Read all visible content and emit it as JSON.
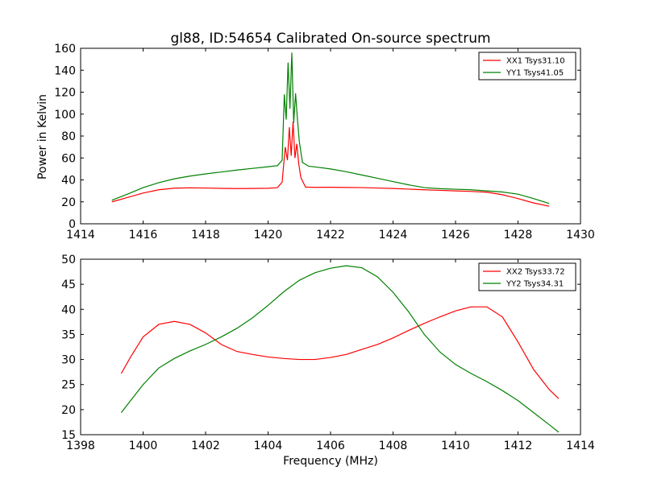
{
  "chart_data": [
    {
      "type": "line",
      "title": "gl88, ID:54654 Calibrated On-source spectrum",
      "xlabel": "",
      "ylabel": "Power in Kelvin",
      "xlim": [
        1414,
        1430
      ],
      "ylim": [
        0,
        160
      ],
      "xticks": [
        "1414",
        "1416",
        "1418",
        "1420",
        "1422",
        "1424",
        "1426",
        "1428",
        "1430"
      ],
      "yticks": [
        "0",
        "20",
        "40",
        "60",
        "80",
        "100",
        "120",
        "140",
        "160"
      ],
      "legend_position": "top-right",
      "series": [
        {
          "name": "XX1 Tsys31.10",
          "color": "#ff0000",
          "x": [
            1415.0,
            1415.5,
            1416.0,
            1416.5,
            1417.0,
            1417.5,
            1418.0,
            1418.5,
            1419.0,
            1419.5,
            1420.0,
            1420.3,
            1420.45,
            1420.55,
            1420.62,
            1420.68,
            1420.74,
            1420.8,
            1420.86,
            1420.92,
            1420.98,
            1421.05,
            1421.2,
            1421.5,
            1422.0,
            1422.5,
            1423.0,
            1423.5,
            1424.0,
            1424.5,
            1425.0,
            1425.5,
            1426.0,
            1426.5,
            1427.0,
            1427.5,
            1428.0,
            1428.5,
            1429.0
          ],
          "y": [
            20,
            24,
            28,
            31,
            32.5,
            32.8,
            32.6,
            32.3,
            32.1,
            32.2,
            32.4,
            33,
            38,
            70,
            58,
            88,
            62,
            93,
            60,
            73,
            55,
            42,
            33.5,
            33.2,
            33.3,
            33.1,
            33,
            32.6,
            32.2,
            31.6,
            31,
            30.5,
            30,
            29.5,
            28.8,
            26.5,
            23,
            19,
            16
          ]
        },
        {
          "name": "YY1 Tsys41.05",
          "color": "#008000",
          "x": [
            1415.0,
            1415.5,
            1416.0,
            1416.5,
            1417.0,
            1417.5,
            1418.0,
            1418.5,
            1419.0,
            1419.5,
            1420.0,
            1420.3,
            1420.45,
            1420.52,
            1420.58,
            1420.64,
            1420.7,
            1420.76,
            1420.82,
            1420.88,
            1420.94,
            1421.0,
            1421.1,
            1421.3,
            1421.6,
            1422.0,
            1422.5,
            1423.0,
            1423.5,
            1424.0,
            1424.5,
            1425.0,
            1425.5,
            1426.0,
            1426.5,
            1427.0,
            1427.5,
            1428.0,
            1428.5,
            1429.0
          ],
          "y": [
            21.5,
            27,
            33,
            37.5,
            41,
            43.5,
            45.5,
            47.2,
            49,
            50.5,
            52,
            53,
            58,
            118,
            95,
            147,
            105,
            156,
            92,
            119,
            95,
            75,
            56,
            52.5,
            51.5,
            50,
            47.5,
            44.5,
            41.5,
            38.5,
            35.5,
            33,
            32,
            31.5,
            31,
            30,
            29,
            27,
            23,
            18.5
          ]
        }
      ]
    },
    {
      "type": "line",
      "title": "",
      "xlabel": "Frequency (MHz)",
      "ylabel": "",
      "xlim": [
        1398,
        1414
      ],
      "ylim": [
        15,
        50
      ],
      "xticks": [
        "1398",
        "1400",
        "1402",
        "1404",
        "1406",
        "1408",
        "1410",
        "1412",
        "1414"
      ],
      "yticks": [
        "15",
        "20",
        "25",
        "30",
        "35",
        "40",
        "45",
        "50"
      ],
      "legend_position": "top-right",
      "series": [
        {
          "name": "XX2 Tsys33.72",
          "color": "#ff0000",
          "x": [
            1399.3,
            1399.6,
            1400.0,
            1400.5,
            1401.0,
            1401.5,
            1402.0,
            1402.5,
            1403.0,
            1403.5,
            1404.0,
            1404.5,
            1405.0,
            1405.5,
            1406.0,
            1406.5,
            1407.0,
            1407.5,
            1408.0,
            1408.5,
            1409.0,
            1409.5,
            1410.0,
            1410.5,
            1411.0,
            1411.5,
            1412.0,
            1412.5,
            1413.0,
            1413.3
          ],
          "y": [
            27.2,
            30.5,
            34.5,
            37,
            37.6,
            37,
            35.3,
            33,
            31.6,
            31,
            30.5,
            30.2,
            30,
            30,
            30.4,
            31,
            32,
            33,
            34.3,
            35.8,
            37.2,
            38.5,
            39.7,
            40.5,
            40.5,
            38.5,
            33.5,
            28,
            24,
            22.2
          ]
        },
        {
          "name": "YY2 Tsys34.31",
          "color": "#008000",
          "x": [
            1399.3,
            1399.6,
            1400.0,
            1400.5,
            1401.0,
            1401.5,
            1402.0,
            1402.5,
            1403.0,
            1403.5,
            1404.0,
            1404.5,
            1405.0,
            1405.5,
            1406.0,
            1406.5,
            1407.0,
            1407.5,
            1408.0,
            1408.5,
            1409.0,
            1409.5,
            1410.0,
            1410.5,
            1411.0,
            1411.5,
            1412.0,
            1412.5,
            1413.0,
            1413.3
          ],
          "y": [
            19.4,
            21.8,
            25,
            28.3,
            30.2,
            31.7,
            33,
            34.5,
            36.2,
            38.3,
            40.8,
            43.5,
            45.8,
            47.3,
            48.2,
            48.7,
            48.3,
            46.5,
            43.4,
            39.5,
            35,
            31.5,
            29,
            27.2,
            25.6,
            23.8,
            21.8,
            19.4,
            17,
            15.5
          ]
        }
      ]
    }
  ]
}
